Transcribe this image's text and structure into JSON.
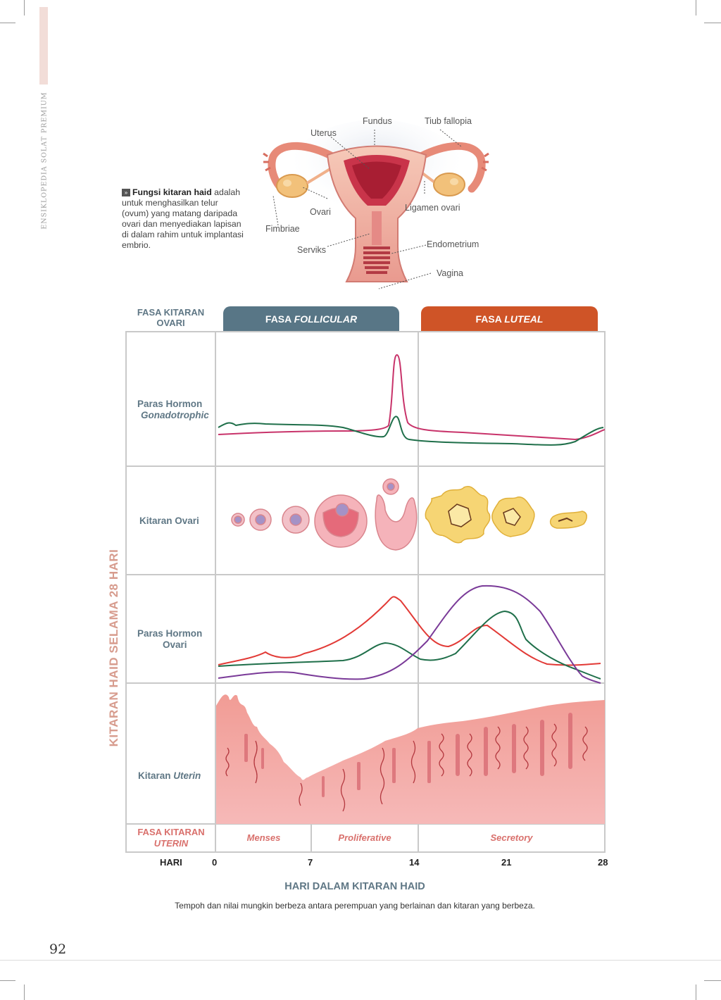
{
  "running_head": "ENSIKLOPEDIA SOLAT PREMIUM",
  "intro": {
    "marker": "»",
    "bold": "Fungsi kitaran haid",
    "text": " adalah untuk menghasilkan telur (ovum) yang matang daripada ovari dan menyediakan lapisan di dalam rahim untuk implantasi embrio."
  },
  "anatomy_labels": {
    "uterus": "Uterus",
    "fundus": "Fundus",
    "tiub_fallopia": "Tiub fallopia",
    "ovari": "Ovari",
    "ligamen_ovari": "Ligamen ovari",
    "fimbriae": "Fimbriae",
    "serviks": "Serviks",
    "endometrium": "Endometrium",
    "vagina": "Vagina"
  },
  "diagram": {
    "ovarian_phase_label": "FASA KITARAN OVARI",
    "follicular_prefix": "FASA ",
    "follicular_name": "FOLLICULAR",
    "luteal_prefix": "FASA ",
    "luteal_name": "LUTEAL",
    "side_label": "KITARAN HAID SELAMA 28 HARI",
    "rows": {
      "gonadotrophic_line1": "Paras Hormon",
      "gonadotrophic_line2": "Gonadotrophic",
      "ovarian_cycle": "Kitaran Ovari",
      "ovarian_hormone_line1": "Paras Hormon",
      "ovarian_hormone_line2": "Ovari",
      "uterine_prefix": "Kitaran ",
      "uterine_name": "Uterin"
    },
    "uterine_phase_label_line1": "FASA KITARAN",
    "uterine_phase_label_line2": "UTERIN",
    "uterine_phases": [
      "Menses",
      "Proliferative",
      "Secretory"
    ],
    "day_label": "HARI",
    "days": [
      "0",
      "7",
      "14",
      "21",
      "28"
    ],
    "x_title": "HARI DALAM KITARAN HAID",
    "footnote": "Tempoh dan nilai mungkin berbeza antara perempuan yang berlainan dan kitaran yang berbeza.",
    "colors": {
      "follicular": "#587686",
      "luteal": "#cf5427",
      "lh": "#c8336a",
      "fsh": "#1f6f4a",
      "estrogen": "#e23a36",
      "progesterone": "#7a3a98",
      "row_label": "#5f7785",
      "side_label": "#d79c8e",
      "uterine_phase": "#d9706c",
      "endometrium": "#f4aeae"
    }
  },
  "page_number": "92"
}
